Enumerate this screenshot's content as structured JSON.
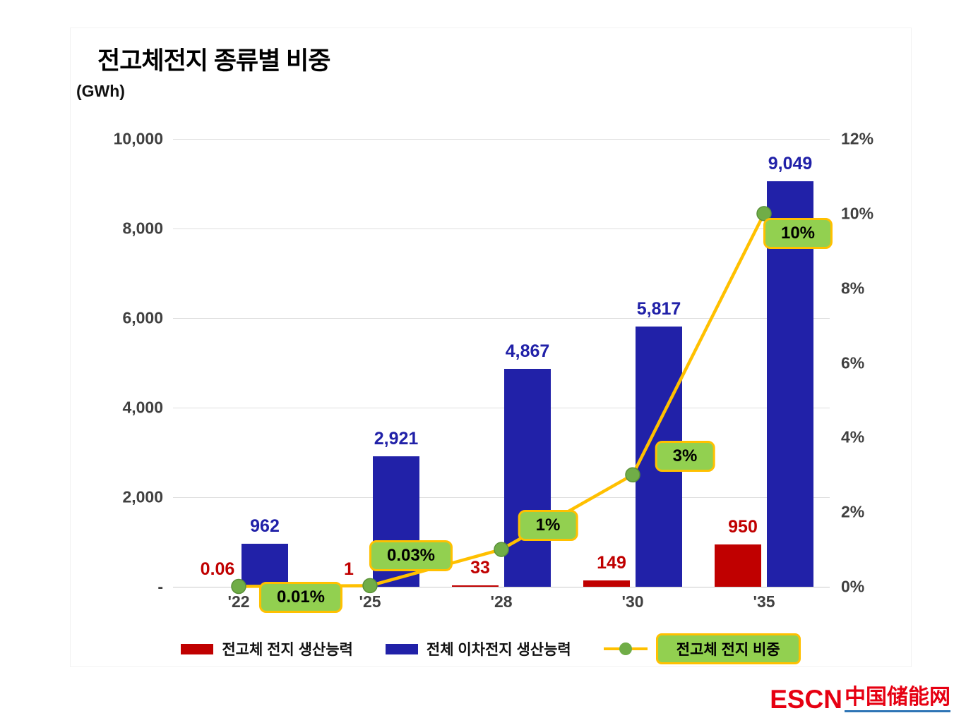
{
  "title": "전고체전지 종류별 비중",
  "unit_label": "(GWh)",
  "watermark": {
    "escn": "ESCN",
    "chinese": "中国储能网"
  },
  "legend": {
    "items": [
      {
        "type": "bar",
        "color": "#C00000",
        "label": "전고체 전지 생산능력"
      },
      {
        "type": "bar",
        "color": "#2121A8",
        "label": "전체 이차전지 생산능력"
      },
      {
        "type": "line",
        "line_color": "#FFC000",
        "marker_color": "#70AD47",
        "badge_bg": "#92D050",
        "label": "전고체 전지 비중"
      }
    ]
  },
  "chart_data": {
    "type": "bar",
    "subtype": "clustered-bar-with-line",
    "title": "전고체전지 종류별 비중",
    "unit": "GWh",
    "categories": [
      "'22",
      "'25",
      "'28",
      "'30",
      "'35"
    ],
    "series": [
      {
        "name": "전고체 전지 생산능력",
        "chart_type": "bar",
        "axis": "left",
        "color": "#C00000",
        "values": [
          0.06,
          1,
          33,
          149,
          950
        ],
        "labels": [
          "0.06",
          "1",
          "33",
          "149",
          "950"
        ]
      },
      {
        "name": "전체 이차전지 생산능력",
        "chart_type": "bar",
        "axis": "left",
        "color": "#2121A8",
        "values": [
          962,
          2921,
          4867,
          5817,
          9049
        ],
        "labels": [
          "962",
          "2,921",
          "4,867",
          "5,817",
          "9,049"
        ]
      },
      {
        "name": "전고체 전지 비중",
        "chart_type": "line",
        "axis": "right",
        "color": "#FFC000",
        "marker_color": "#70AD47",
        "values_pct": [
          0.01,
          0.03,
          1,
          3,
          10
        ],
        "labels": [
          "0.01%",
          "0.03%",
          "1%",
          "3%",
          "10%"
        ]
      }
    ],
    "left_axis": {
      "min": 0,
      "max": 10000,
      "ticks": [
        "-",
        "2,000",
        "4,000",
        "6,000",
        "8,000",
        "10,000"
      ]
    },
    "right_axis": {
      "min": 0,
      "max": 12,
      "ticks": [
        "0%",
        "2%",
        "4%",
        "6%",
        "8%",
        "10%",
        "12%"
      ]
    },
    "grid": true,
    "legend_position": "bottom"
  }
}
